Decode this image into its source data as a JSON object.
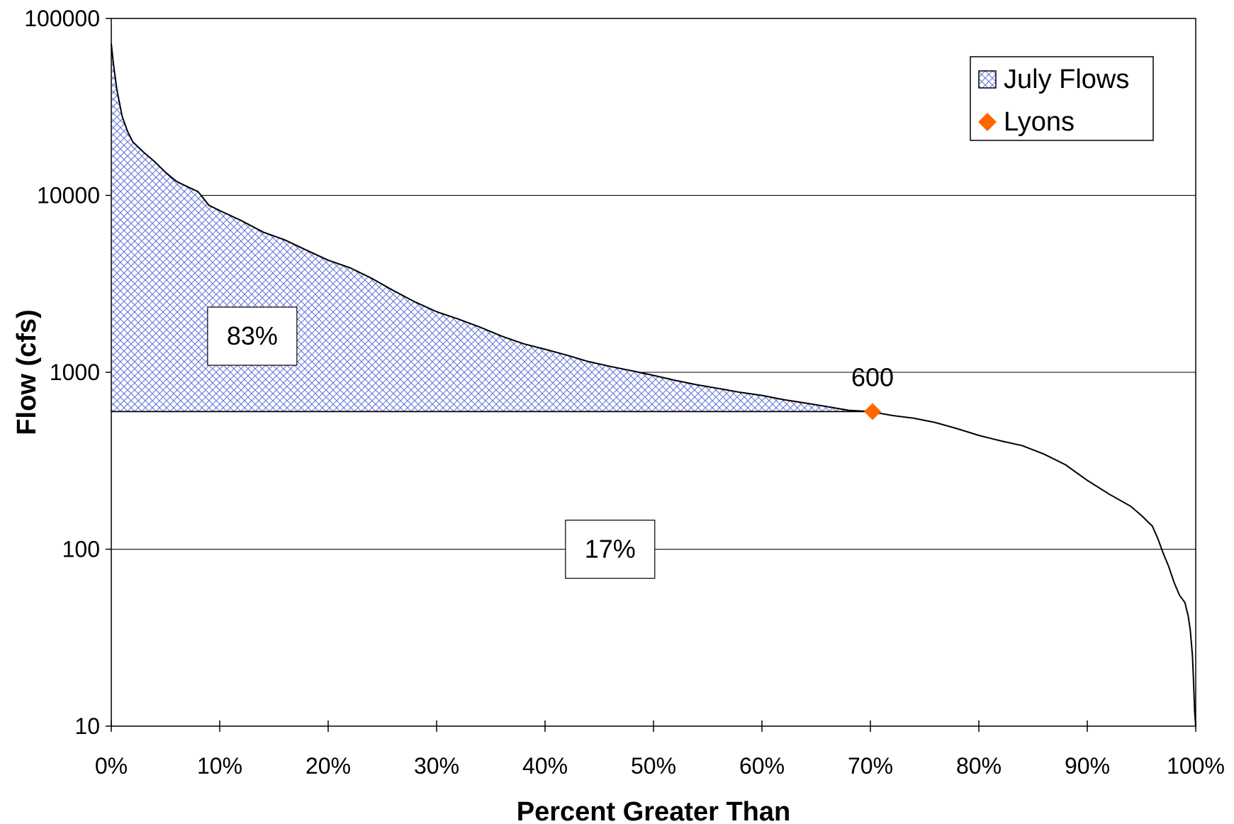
{
  "chart_data": {
    "type": "area",
    "xlabel": "Percent Greater Than",
    "ylabel": "Flow (cfs)",
    "xscale": "linear",
    "yscale": "log",
    "xlim": [
      0,
      100
    ],
    "ylim": [
      10,
      100000
    ],
    "x_ticks": [
      0,
      10,
      20,
      30,
      40,
      50,
      60,
      70,
      80,
      90,
      100
    ],
    "x_tick_labels": [
      "0%",
      "10%",
      "20%",
      "30%",
      "40%",
      "50%",
      "60%",
      "70%",
      "80%",
      "90%",
      "100%"
    ],
    "y_ticks": [
      10,
      100,
      1000,
      10000,
      100000
    ],
    "y_tick_labels": [
      "10",
      "100",
      "1000",
      "10000",
      "100000"
    ],
    "grid": "horizontal",
    "legend_position": "top-right",
    "series": [
      {
        "name": "July Flows",
        "style": "crosshatch-area",
        "color": "#5b6fd6",
        "fill_above": 600,
        "x": [
          0,
          0.2,
          0.5,
          1,
          1.5,
          2,
          3,
          4,
          5,
          6,
          7,
          8,
          9,
          10,
          12,
          14,
          16,
          18,
          20,
          22,
          24,
          26,
          28,
          30,
          32,
          34,
          36,
          38,
          40,
          42,
          44,
          46,
          48,
          50,
          52,
          54,
          56,
          58,
          60,
          62,
          64,
          66,
          68,
          70,
          72,
          74,
          76,
          78,
          80,
          82,
          84,
          86,
          88,
          90,
          92,
          94,
          95,
          96,
          96.5,
          97,
          97.5,
          98,
          98.5,
          99,
          99.3,
          99.5,
          99.7,
          99.8,
          99.9,
          100
        ],
        "y": [
          72000,
          55000,
          40000,
          28000,
          23000,
          20000,
          17500,
          15500,
          13500,
          12000,
          11200,
          10500,
          8800,
          8200,
          7200,
          6200,
          5600,
          4900,
          4300,
          3900,
          3400,
          2900,
          2500,
          2200,
          2000,
          1800,
          1600,
          1450,
          1350,
          1250,
          1150,
          1080,
          1020,
          960,
          900,
          850,
          810,
          770,
          740,
          700,
          670,
          640,
          610,
          600,
          570,
          550,
          520,
          480,
          440,
          410,
          385,
          345,
          300,
          245,
          205,
          175,
          155,
          135,
          115,
          95,
          80,
          65,
          55,
          50,
          42,
          35,
          25,
          18,
          12,
          10
        ]
      },
      {
        "name": "Lyons",
        "style": "marker-diamond",
        "color": "#ff6600",
        "points": [
          {
            "x": 70.2,
            "y": 600
          }
        ]
      }
    ],
    "annotations": [
      {
        "text": "83%",
        "x": 13,
        "y": 1600,
        "boxed": true
      },
      {
        "text": "17%",
        "x": 46,
        "y": 100,
        "boxed": true
      },
      {
        "text": "600",
        "x": 70.2,
        "y": 600
      }
    ]
  }
}
